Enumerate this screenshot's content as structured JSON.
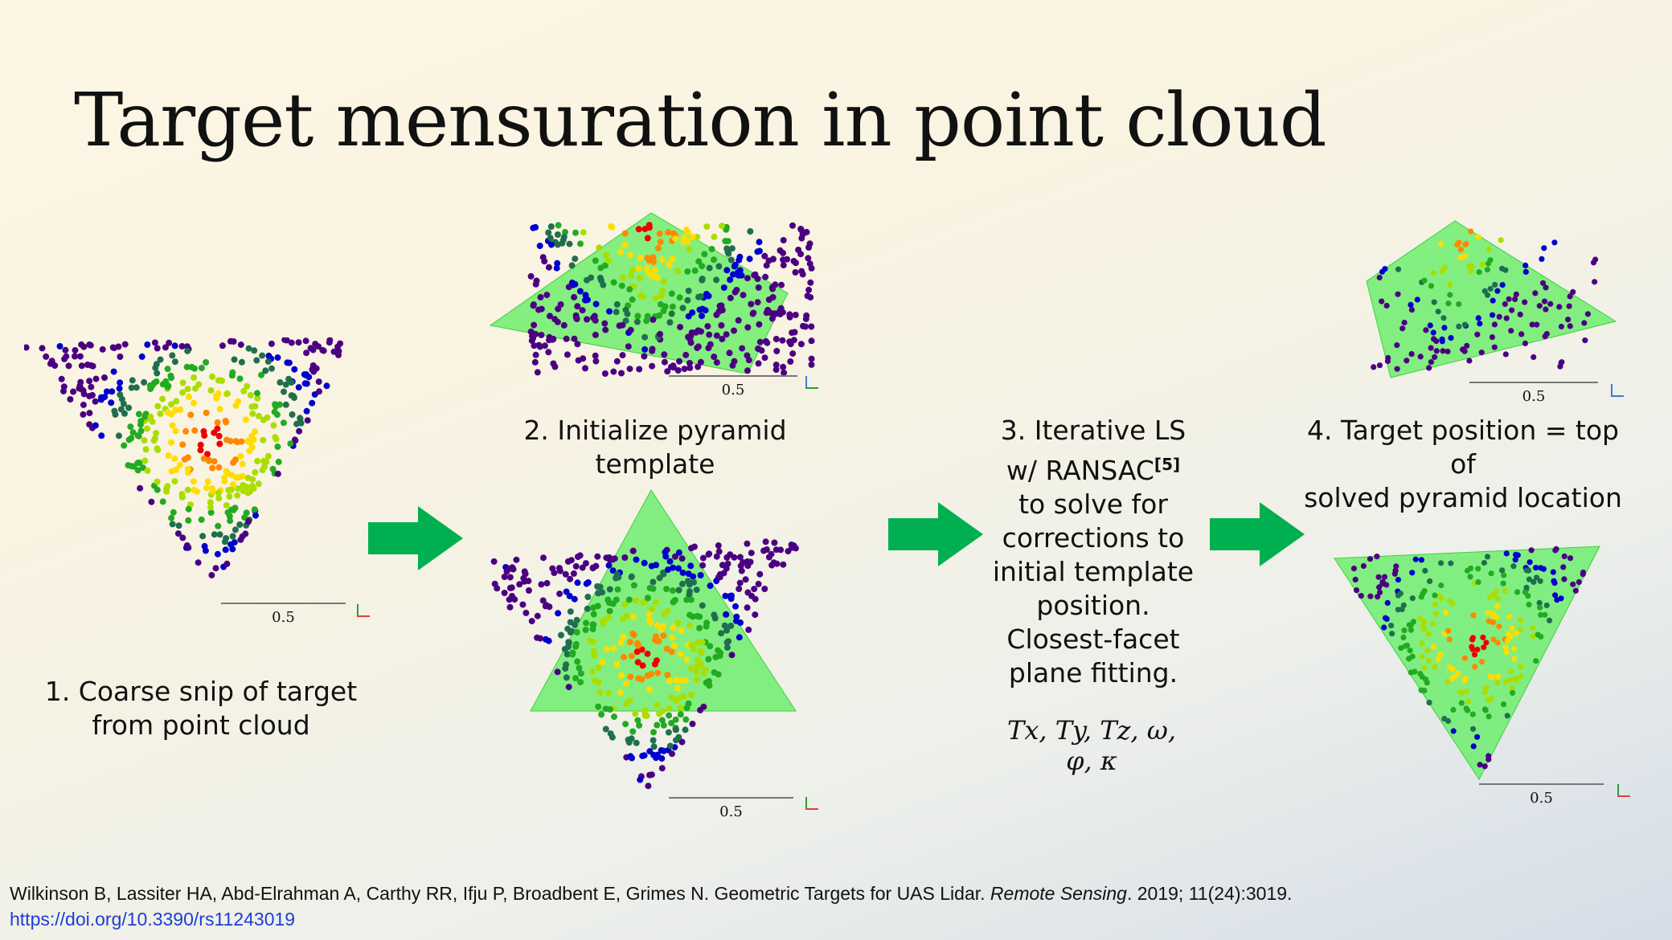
{
  "title": "Target mensuration in point cloud",
  "steps": [
    {
      "lines": [
        "1. Coarse snip of target",
        "from point cloud"
      ]
    },
    {
      "lines": [
        "2. Initialize pyramid",
        "template"
      ]
    },
    {
      "lines": [
        "3. Iterative LS",
        "w/ RANSAC",
        "to solve for",
        "corrections to",
        "initial template",
        "position.",
        "Closest-facet",
        "plane fitting."
      ],
      "ref": "[5]"
    },
    {
      "lines": [
        "4. Target position = top of",
        "solved pyramid location"
      ]
    }
  ],
  "parameters": "Tx, Ty, Tz, ω, φ, κ",
  "scale_label": "0.5",
  "colors": {
    "arrow": "#00b050",
    "template": "#66ee66",
    "points": [
      "#4b0082",
      "#0000cc",
      "#1f6f4f",
      "#22aa22",
      "#aadd00",
      "#ffdd00",
      "#ff8800",
      "#ee0000"
    ]
  },
  "citation": {
    "authors": "Wilkinson B, Lassiter HA, Abd-Elrahman A, Carthy RR, Ifju P, Broadbent E, Grimes N. Geometric Targets for UAS Lidar.",
    "journal": "Remote Sensing",
    "details": ". 2019; 11(24):3019.",
    "doi": "https://doi.org/10.3390/rs11243019"
  }
}
